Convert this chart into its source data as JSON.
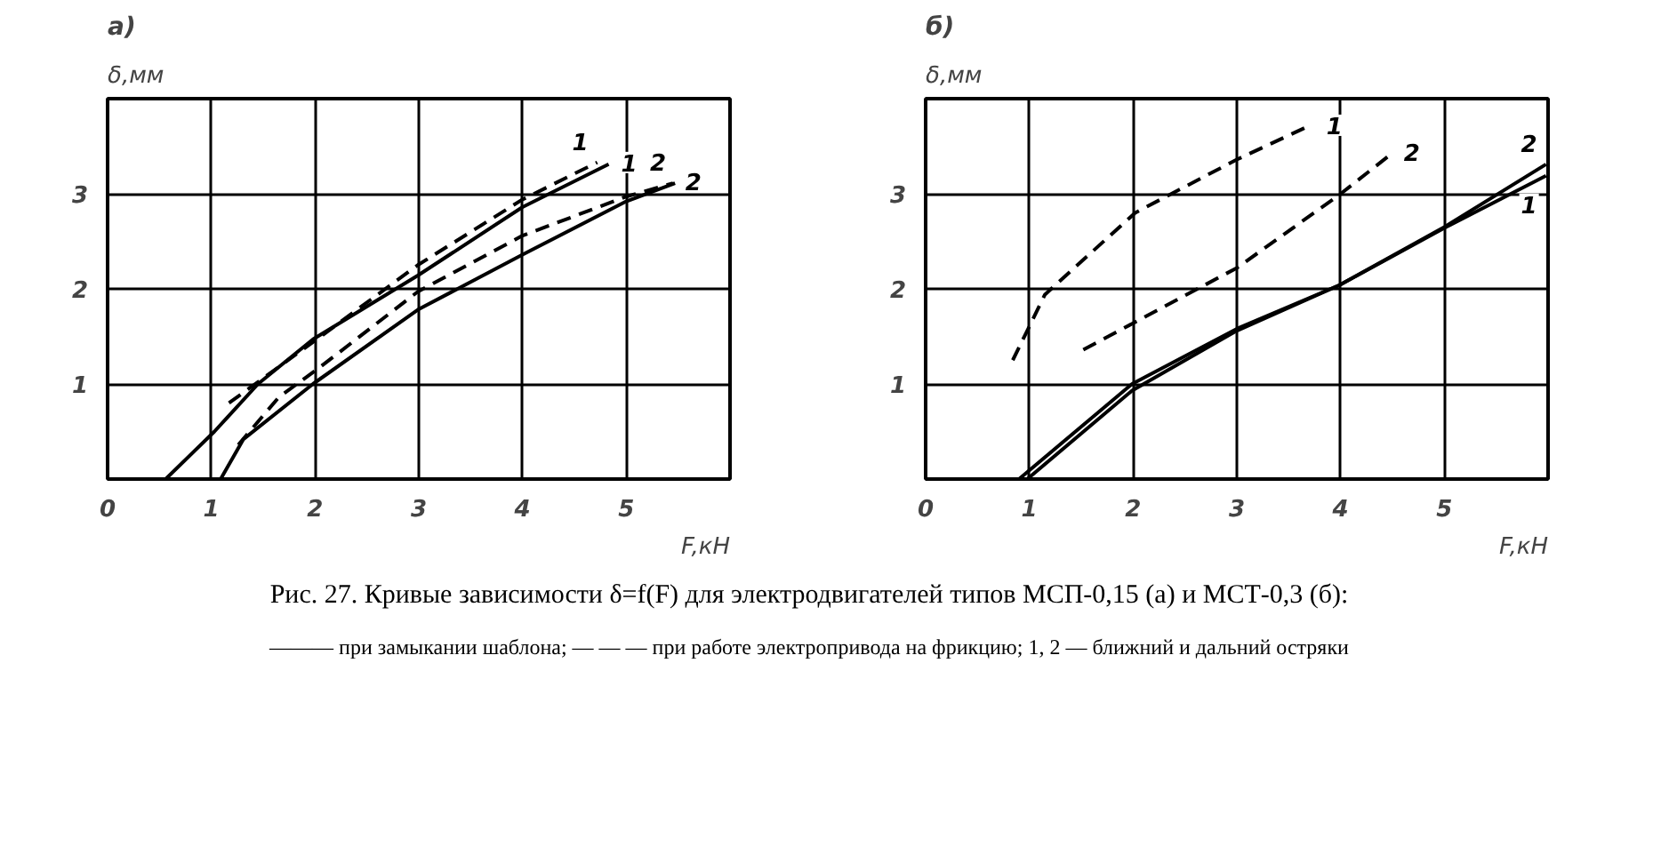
{
  "chart_data": [
    {
      "type": "line",
      "title": "а)",
      "xlabel": "F,кН",
      "ylabel": "δ,мм",
      "xlim": [
        0,
        6
      ],
      "ylim": [
        0,
        4
      ],
      "xticks": [
        0,
        1,
        2,
        3,
        4,
        5
      ],
      "yticks": [
        1,
        2,
        3
      ],
      "grid": true,
      "series": [
        {
          "name": "1",
          "color": "#000000",
          "line_style": "solid",
          "x": [
            0.56,
            1.03,
            1.45,
            1.98,
            2.99,
            4.0,
            4.83
          ],
          "values": [
            0,
            0.5,
            1.0,
            1.47,
            2.14,
            2.86,
            3.31
          ]
        },
        {
          "name": "1",
          "color": "#000000",
          "line_style": "dashed",
          "x": [
            1.17,
            1.98,
            2.99,
            4.0,
            4.72
          ],
          "values": [
            0.8,
            1.44,
            2.25,
            2.94,
            3.33
          ]
        },
        {
          "name": "2",
          "color": "#000000",
          "line_style": "solid",
          "x": [
            1.09,
            1.31,
            1.98,
            2.99,
            4.0,
            5.0,
            5.47
          ],
          "values": [
            0,
            0.42,
            1.0,
            1.78,
            2.36,
            2.92,
            3.11
          ]
        },
        {
          "name": "2",
          "color": "#000000",
          "line_style": "dashed",
          "x": [
            1.26,
            1.65,
            2.04,
            2.99,
            4.0,
            5.0,
            5.45
          ],
          "values": [
            0.36,
            0.86,
            1.17,
            1.97,
            2.56,
            2.97,
            3.11
          ]
        }
      ],
      "annotations": [
        "Рис. 27. Кривые зависимости δ=f(F) для электродвигателей типов МСП-0,15 (а) и МСТ-0,3 (б):",
        "——— при замыкании шаблона; — — — при работе электропривода на фрикцию; 1, 2 — ближний и дальний остряки"
      ]
    },
    {
      "type": "line",
      "title": "б)",
      "xlabel": "F,кН",
      "ylabel": "δ,мм",
      "xlim": [
        0,
        6
      ],
      "ylim": [
        0,
        4
      ],
      "xticks": [
        0,
        1,
        2,
        3,
        4,
        5
      ],
      "yticks": [
        1,
        2,
        3
      ],
      "grid": true,
      "series": [
        {
          "name": "2",
          "color": "#000000",
          "line_style": "solid",
          "x": [
            0.9,
            1.99,
            3.0,
            3.99,
            5.0,
            5.98
          ],
          "values": [
            0,
            1.0,
            1.58,
            2.04,
            2.65,
            3.31
          ]
        },
        {
          "name": "1",
          "color": "#000000",
          "line_style": "solid",
          "x": [
            0.98,
            1.99,
            3.0,
            3.99,
            5.0,
            5.98
          ],
          "values": [
            0,
            0.93,
            1.56,
            2.04,
            2.64,
            3.19
          ]
        },
        {
          "name": "1",
          "color": "#000000",
          "line_style": "dashed",
          "x": [
            0.84,
            1.15,
            2.02,
            3.0,
            3.71
          ],
          "values": [
            1.25,
            1.94,
            2.8,
            3.36,
            3.72
          ]
        },
        {
          "name": "2",
          "color": "#000000",
          "line_style": "dashed",
          "x": [
            1.52,
            3.0,
            3.99,
            4.49
          ],
          "values": [
            1.36,
            2.22,
            2.99,
            3.42
          ]
        }
      ]
    }
  ]
}
